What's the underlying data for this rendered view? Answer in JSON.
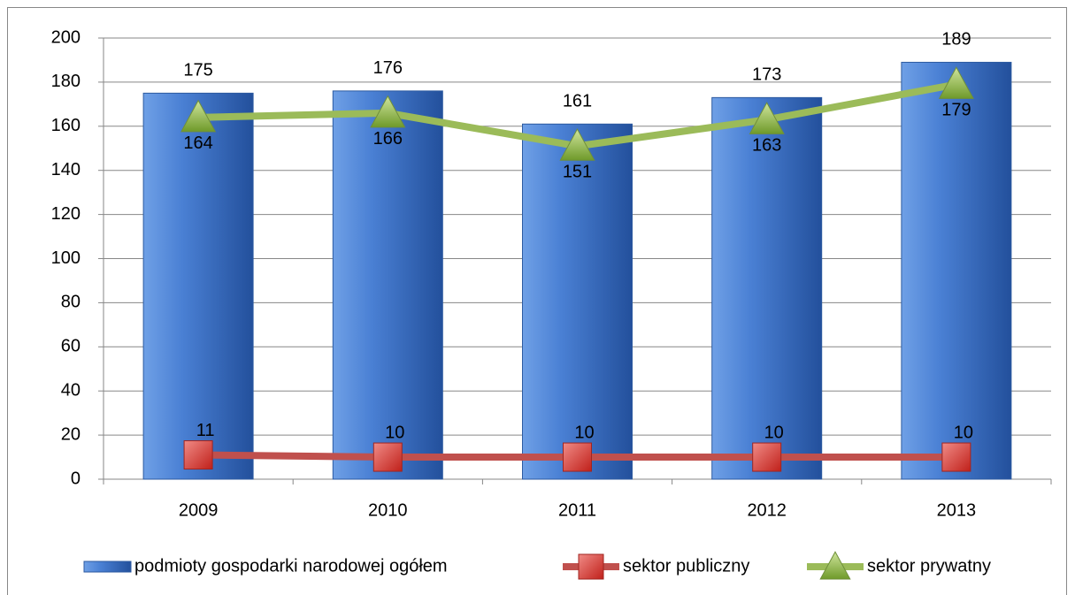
{
  "chart_data": {
    "type": "bar",
    "categories": [
      "2009",
      "2010",
      "2011",
      "2012",
      "2013"
    ],
    "series": [
      {
        "name": "podmioty gospodarki narodowej ogółem",
        "type": "bar",
        "color": "#3f73c6",
        "values": [
          175,
          176,
          161,
          173,
          189
        ]
      },
      {
        "name": "sektor publiczny",
        "type": "line",
        "marker": "square",
        "color": "#c0504d",
        "values": [
          11,
          10,
          10,
          10,
          10
        ]
      },
      {
        "name": "sektor prywatny",
        "type": "line",
        "marker": "triangle",
        "color": "#9bbb59",
        "values": [
          164,
          166,
          151,
          163,
          179
        ]
      }
    ],
    "ylim": [
      0,
      200
    ],
    "yticks": [
      0,
      20,
      40,
      60,
      80,
      100,
      120,
      140,
      160,
      180,
      200
    ],
    "grid": true,
    "legend": "bottom"
  }
}
